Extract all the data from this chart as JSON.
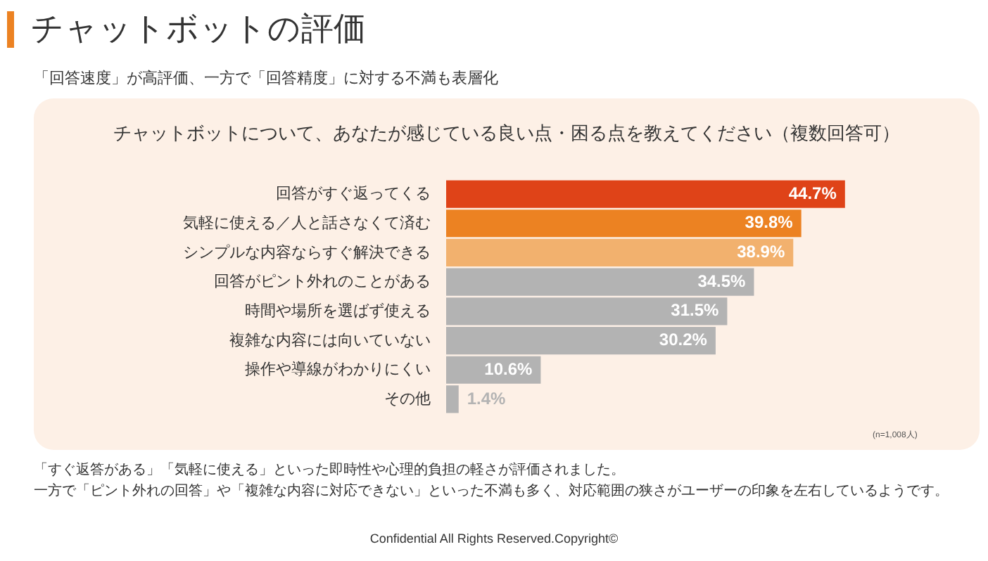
{
  "chart_data": {
    "type": "bar",
    "orientation": "horizontal",
    "title": "チャットボットの評価",
    "subtitle": "「回答速度」が高評価、一方で「回答精度」に対する不満も表層化",
    "xlabel": "チャットボットについて、あなたが感じている良い点・困る点を教えてください（複数回答可）",
    "categories": [
      "回答がすぐ返ってくる",
      "気軽に使える／人と話さなくて済む",
      "シンプルな内容ならすぐ解決できる",
      "回答がピント外れのことがある",
      "時間や場所を選ばず使える",
      "複雑な内容には向いていない",
      "操作や導線がわかりにくい",
      "その他"
    ],
    "values": [
      44.7,
      39.8,
      38.9,
      34.5,
      31.5,
      30.2,
      10.6,
      1.4
    ],
    "colors": [
      "#df4318",
      "#ec8222",
      "#f2b16e",
      "#b3b3b3",
      "#b3b3b3",
      "#b3b3b3",
      "#b3b3b3",
      "#b3b3b3"
    ],
    "value_labels": [
      "44.7%",
      "39.8%",
      "38.9%",
      "34.5%",
      "31.5%",
      "30.2%",
      "10.6%",
      "1.4%"
    ],
    "annotations": [
      "(n=1,008人)",
      "「すぐ返答がある」「気軽に使える」といった即時性や心理的負担の軽さが評価されました。",
      "一方で「ピント外れの回答」や「複雑な内容に対応できない」といった不満も多く、対応範囲の狭さがユーザーの印象を左右しているようです。",
      "Confidential All Rights Reserved.Copyright©"
    ],
    "grid": false,
    "legend": false
  }
}
